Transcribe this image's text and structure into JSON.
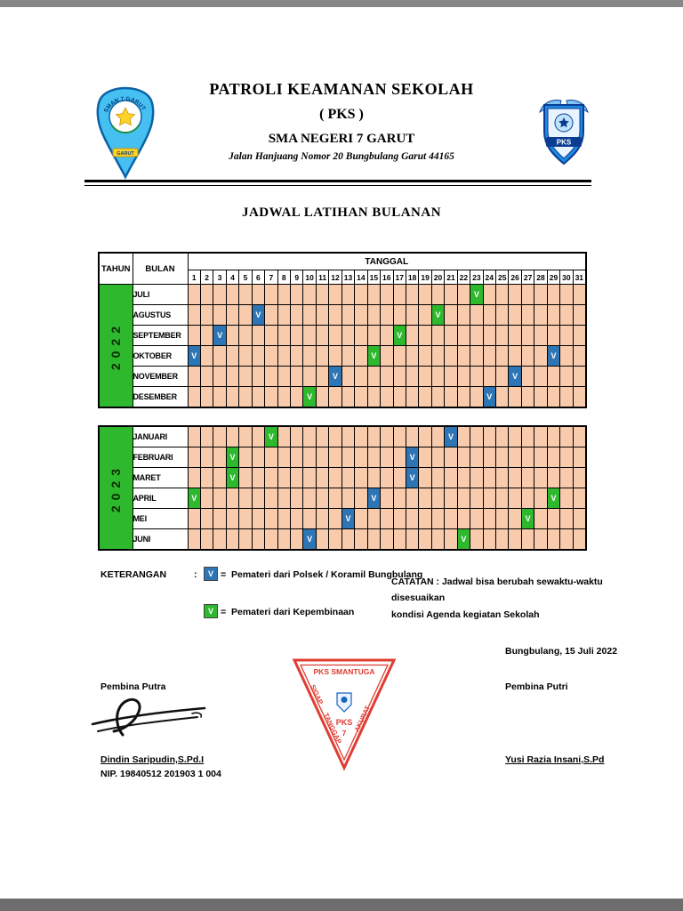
{
  "colors": {
    "cell_bg": "#F8CBAD",
    "blue_mark": "#2E75B6",
    "green_mark": "#2EB82E"
  },
  "header": {
    "title1": "PATROLI KEAMANAN SEKOLAH",
    "title2": "( PKS )",
    "title3": "SMA NEGERI 7 GARUT",
    "address": "Jalan Hanjuang Nomor 20 Bungbulang Garut 44165"
  },
  "doc_title": "JADWAL LATIHAN BULANAN",
  "table": {
    "tahun_label": "TAHUN",
    "bulan_label": "BULAN",
    "tanggal_label": "TANGGAL",
    "mark_char": "V",
    "dates": [
      1,
      2,
      3,
      4,
      5,
      6,
      7,
      8,
      9,
      10,
      11,
      12,
      13,
      14,
      15,
      16,
      17,
      18,
      19,
      20,
      21,
      22,
      23,
      24,
      25,
      26,
      27,
      28,
      29,
      30,
      31
    ]
  },
  "schedules": [
    {
      "year": "2022",
      "months": [
        {
          "name": "JULI",
          "marks": [
            {
              "date": 23,
              "type": "green"
            }
          ]
        },
        {
          "name": "AGUSTUS",
          "marks": [
            {
              "date": 6,
              "type": "blue"
            },
            {
              "date": 20,
              "type": "green"
            }
          ]
        },
        {
          "name": "SEPTEMBER",
          "marks": [
            {
              "date": 3,
              "type": "blue"
            },
            {
              "date": 17,
              "type": "green"
            }
          ]
        },
        {
          "name": "OKTOBER",
          "marks": [
            {
              "date": 1,
              "type": "blue"
            },
            {
              "date": 15,
              "type": "green"
            },
            {
              "date": 29,
              "type": "blue"
            }
          ]
        },
        {
          "name": "NOVEMBER",
          "marks": [
            {
              "date": 12,
              "type": "blue"
            },
            {
              "date": 26,
              "type": "blue"
            }
          ]
        },
        {
          "name": "DESEMBER",
          "marks": [
            {
              "date": 10,
              "type": "green"
            },
            {
              "date": 24,
              "type": "blue"
            }
          ]
        }
      ]
    },
    {
      "year": "2023",
      "months": [
        {
          "name": "JANUARI",
          "marks": [
            {
              "date": 7,
              "type": "green"
            },
            {
              "date": 21,
              "type": "blue"
            }
          ]
        },
        {
          "name": "FEBRUARI",
          "marks": [
            {
              "date": 4,
              "type": "green"
            },
            {
              "date": 18,
              "type": "blue"
            }
          ]
        },
        {
          "name": "MARET",
          "marks": [
            {
              "date": 4,
              "type": "green"
            },
            {
              "date": 18,
              "type": "blue"
            }
          ]
        },
        {
          "name": "APRIL",
          "marks": [
            {
              "date": 1,
              "type": "green"
            },
            {
              "date": 15,
              "type": "blue"
            },
            {
              "date": 29,
              "type": "green"
            }
          ]
        },
        {
          "name": "MEI",
          "marks": [
            {
              "date": 13,
              "type": "blue"
            },
            {
              "date": 27,
              "type": "green"
            }
          ]
        },
        {
          "name": "JUNI",
          "marks": [
            {
              "date": 10,
              "type": "blue"
            },
            {
              "date": 22,
              "type": "green"
            }
          ]
        }
      ]
    }
  ],
  "legend": {
    "label": "KETERANGAN",
    "colon": ":",
    "eq": "=",
    "mark": "V",
    "blue_text": "Pemateri dari Polsek / Koramil Bungbulang",
    "green_text": "Pemateri dari Kepembinaan"
  },
  "catatan": {
    "line1": "CATATAN : Jadwal bisa berubah sewaktu-waktu disesuaikan",
    "line2": "kondisi Agenda kegiatan Sekolah"
  },
  "signoff": {
    "place_date": "Bungbulang, 15 Juli 2022",
    "left_role": "Pembina Putra",
    "left_name": "Dindin Saripudin,S.Pd.I",
    "left_nip": "NIP. 19840512 201903 1 004",
    "right_role": "Pembina Putri",
    "right_name": "Yusi Razia Insani,S.Pd"
  },
  "logos": {
    "school": {
      "arc_text": "SMAN 7 GARUT",
      "ribbon": "GARUT"
    },
    "badge": {
      "label": "PKS"
    },
    "triangle": {
      "title": "PKS SMANTUGA",
      "motto1": "SIGAP",
      "motto2": "TANGGAP",
      "motto3": "AKURAT",
      "crest": "PKS",
      "number": "7"
    }
  }
}
